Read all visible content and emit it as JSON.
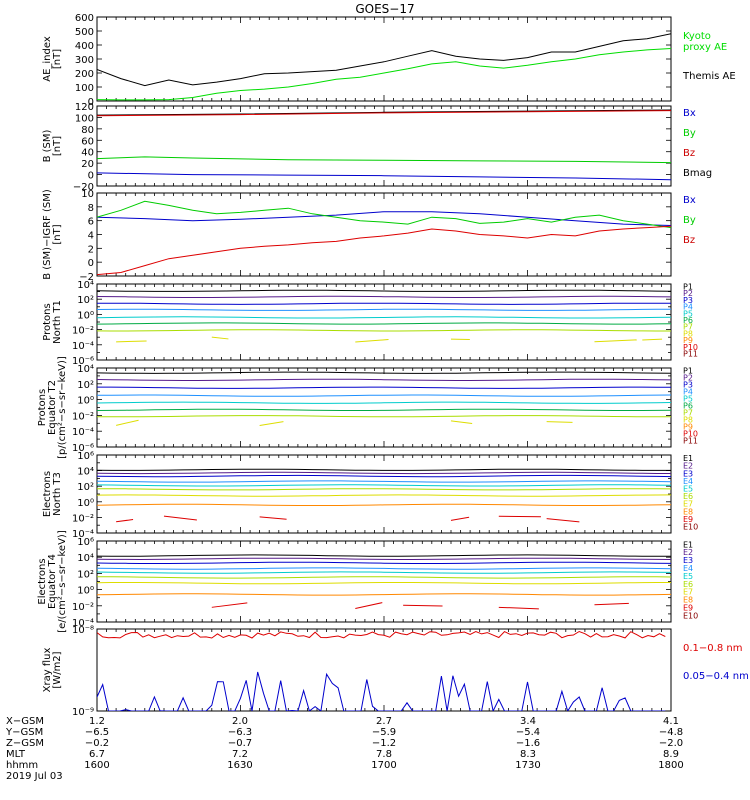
{
  "title": "GOES−17",
  "chart_data": [
    {
      "type": "line",
      "ylabel": [
        "AE_index",
        "[nT]"
      ],
      "ylim": [
        0,
        600
      ],
      "yticks": [
        "0",
        "100",
        "200",
        "300",
        "400",
        "500",
        "600"
      ],
      "legend": [
        {
          "text": [
            "Kyoto",
            "proxy AE"
          ],
          "color": "#00dd00"
        },
        {
          "text": [
            "Themis AE"
          ],
          "color": "#000000"
        }
      ],
      "series": [
        {
          "name": "Themis AE",
          "color": "#000000",
          "x": [
            0,
            5,
            10,
            15,
            20,
            25,
            30,
            35,
            40,
            45,
            50,
            55,
            60,
            65,
            70,
            75,
            80,
            85,
            90,
            95,
            100,
            105,
            110,
            115,
            120
          ],
          "y": [
            225,
            160,
            110,
            150,
            115,
            135,
            160,
            195,
            200,
            210,
            220,
            250,
            280,
            320,
            360,
            320,
            300,
            290,
            310,
            350,
            350,
            390,
            430,
            445,
            480
          ]
        },
        {
          "name": "Kyoto proxy AE",
          "color": "#00dd00",
          "x": [
            0,
            5,
            10,
            15,
            20,
            25,
            30,
            35,
            40,
            45,
            50,
            55,
            60,
            65,
            70,
            75,
            80,
            85,
            90,
            95,
            100,
            105,
            110,
            115,
            120
          ],
          "y": [
            10,
            8,
            8,
            10,
            25,
            55,
            75,
            85,
            100,
            125,
            155,
            170,
            200,
            230,
            265,
            280,
            250,
            235,
            255,
            280,
            300,
            330,
            350,
            365,
            375
          ]
        }
      ]
    },
    {
      "type": "line",
      "ylabel": [
        "B (SM)",
        "[nT]"
      ],
      "ylim": [
        -20,
        120
      ],
      "yticks": [
        "−20",
        "0",
        "20",
        "40",
        "60",
        "80",
        "100",
        "120"
      ],
      "legend": [
        {
          "text": [
            "Bx"
          ],
          "color": "#0000cc"
        },
        {
          "text": [
            "By"
          ],
          "color": "#00cc00"
        },
        {
          "text": [
            "Bz"
          ],
          "color": "#cc0000"
        },
        {
          "text": [
            "Bmag"
          ],
          "color": "#000000"
        }
      ],
      "series": [
        {
          "name": "Bmag",
          "color": "#000000",
          "x": [
            0,
            30,
            60,
            90,
            120
          ],
          "y": [
            104,
            106,
            109,
            111,
            113
          ]
        },
        {
          "name": "Bz",
          "color": "#dd0000",
          "x": [
            0,
            30,
            60,
            90,
            120
          ],
          "y": [
            103,
            105,
            108,
            110,
            112
          ]
        },
        {
          "name": "By",
          "color": "#00cc00",
          "x": [
            0,
            10,
            20,
            40,
            60,
            80,
            100,
            120
          ],
          "y": [
            28,
            31,
            29,
            26,
            25,
            24,
            23,
            21
          ]
        },
        {
          "name": "Bx",
          "color": "#0000cc",
          "x": [
            0,
            20,
            40,
            60,
            80,
            100,
            120
          ],
          "y": [
            3,
            0,
            -1,
            -2,
            -4,
            -6,
            -9
          ]
        }
      ]
    },
    {
      "type": "line",
      "ylabel": [
        "B (SM)−IGRF (SM)",
        "[nT]"
      ],
      "ylim": [
        -2,
        10
      ],
      "yticks": [
        "−2",
        "0",
        "2",
        "4",
        "6",
        "8",
        "10"
      ],
      "legend": [
        {
          "text": [
            "Bx"
          ],
          "color": "#0000cc"
        },
        {
          "text": [
            "By"
          ],
          "color": "#00cc00"
        },
        {
          "text": [
            "Bz"
          ],
          "color": "#cc0000"
        }
      ],
      "series": [
        {
          "name": "Bx",
          "color": "#0000cc",
          "x": [
            0,
            10,
            20,
            30,
            40,
            50,
            60,
            70,
            80,
            90,
            100,
            110,
            120
          ],
          "y": [
            6.5,
            6.3,
            6,
            6.2,
            6.5,
            6.8,
            7.3,
            7.3,
            7,
            6.5,
            6,
            5.5,
            5.3
          ]
        },
        {
          "name": "By",
          "color": "#00cc00",
          "x": [
            0,
            5,
            10,
            15,
            20,
            25,
            30,
            35,
            40,
            45,
            50,
            55,
            60,
            65,
            70,
            75,
            80,
            85,
            90,
            95,
            100,
            105,
            110,
            115,
            120
          ],
          "y": [
            6.5,
            7.5,
            8.8,
            8.2,
            7.5,
            7,
            7.2,
            7.5,
            7.8,
            7,
            6.5,
            6,
            5.8,
            5.5,
            6.5,
            6.3,
            5.6,
            5.8,
            6.3,
            5.8,
            6.5,
            6.8,
            6,
            5.5,
            5
          ]
        },
        {
          "name": "Bz",
          "color": "#dd0000",
          "x": [
            0,
            5,
            10,
            15,
            20,
            25,
            30,
            35,
            40,
            45,
            50,
            55,
            60,
            65,
            70,
            75,
            80,
            85,
            90,
            95,
            100,
            105,
            110,
            115,
            120
          ],
          "y": [
            -1.8,
            -1.5,
            -0.5,
            0.5,
            1,
            1.5,
            2,
            2.3,
            2.5,
            2.8,
            3,
            3.5,
            3.8,
            4.2,
            4.8,
            4.5,
            4,
            3.8,
            3.5,
            4,
            3.8,
            4.5,
            4.8,
            5,
            5.2
          ]
        }
      ]
    },
    {
      "type": "line",
      "log": true,
      "ylabel": [
        "Protons",
        "North T1"
      ],
      "ylim": [
        1e-06,
        10000.0
      ],
      "legend": [
        {
          "text": [
            "P1"
          ],
          "color": "#000000"
        },
        {
          "text": [
            "P2"
          ],
          "color": "#551a8b"
        },
        {
          "text": [
            "P3"
          ],
          "color": "#0000cc"
        },
        {
          "text": [
            "P4"
          ],
          "color": "#1e90ff"
        },
        {
          "text": [
            "P5"
          ],
          "color": "#00cccc"
        },
        {
          "text": [
            "P6"
          ],
          "color": "#00aa44"
        },
        {
          "text": [
            "P7"
          ],
          "color": "#aadd00"
        },
        {
          "text": [
            "P8"
          ],
          "color": "#dddd00"
        },
        {
          "text": [
            "P9"
          ],
          "color": "#ff8800"
        },
        {
          "text": [
            "P10"
          ],
          "color": "#dd0000"
        },
        {
          "text": [
            "P11"
          ],
          "color": "#880000"
        }
      ],
      "series": [
        {
          "name": "P1",
          "color": "#000000",
          "logval": 3.1
        },
        {
          "name": "P2",
          "color": "#551a8b",
          "logval": 2.3
        },
        {
          "name": "P3",
          "color": "#0000cc",
          "logval": 1.4
        },
        {
          "name": "P4",
          "color": "#1e90ff",
          "logval": 0.6
        },
        {
          "name": "P5",
          "color": "#00cccc",
          "logval": -0.4
        },
        {
          "name": "P6",
          "color": "#00aa44",
          "logval": -1.2
        },
        {
          "name": "P7",
          "color": "#aadd00",
          "logval": -2.1
        },
        {
          "name": "P8",
          "color": "#dddd00",
          "logval": -3.3,
          "fragments": true
        }
      ]
    },
    {
      "type": "line",
      "log": true,
      "ylabel": [
        "Protons",
        "Equator T2",
        "[p/(cm²−s−sr−keV)]"
      ],
      "ylim": [
        1e-06,
        10000.0
      ],
      "legend": [
        {
          "text": [
            "P1"
          ],
          "color": "#000000"
        },
        {
          "text": [
            "P2"
          ],
          "color": "#551a8b"
        },
        {
          "text": [
            "P3"
          ],
          "color": "#0000cc"
        },
        {
          "text": [
            "P4"
          ],
          "color": "#1e90ff"
        },
        {
          "text": [
            "P5"
          ],
          "color": "#00cccc"
        },
        {
          "text": [
            "P6"
          ],
          "color": "#00aa44"
        },
        {
          "text": [
            "P7"
          ],
          "color": "#aadd00"
        },
        {
          "text": [
            "P8"
          ],
          "color": "#dddd00"
        },
        {
          "text": [
            "P9"
          ],
          "color": "#ff8800"
        },
        {
          "text": [
            "P10"
          ],
          "color": "#dd0000"
        },
        {
          "text": [
            "P11"
          ],
          "color": "#880000"
        }
      ],
      "series": [
        {
          "name": "P1",
          "color": "#000000",
          "logval": 3.4
        },
        {
          "name": "P2",
          "color": "#551a8b",
          "logval": 2.5
        },
        {
          "name": "P3",
          "color": "#0000cc",
          "logval": 1.5
        },
        {
          "name": "P4",
          "color": "#1e90ff",
          "logval": 0.5
        },
        {
          "name": "P5",
          "color": "#00cccc",
          "logval": -0.4
        },
        {
          "name": "P6",
          "color": "#00aa44",
          "logval": -1.3
        },
        {
          "name": "P7",
          "color": "#aadd00",
          "logval": -2.1
        },
        {
          "name": "P8",
          "color": "#dddd00",
          "logval": -3.0,
          "fragments": true
        }
      ]
    },
    {
      "type": "line",
      "log": true,
      "ylabel": [
        "Electrons",
        "North T3"
      ],
      "ylim": [
        0.0001,
        1000000.0
      ],
      "legend": [
        {
          "text": [
            "E1"
          ],
          "color": "#000000"
        },
        {
          "text": [
            "E2"
          ],
          "color": "#551a8b"
        },
        {
          "text": [
            "E3"
          ],
          "color": "#0000cc"
        },
        {
          "text": [
            "E4"
          ],
          "color": "#1e90ff"
        },
        {
          "text": [
            "E5"
          ],
          "color": "#00cccc"
        },
        {
          "text": [
            "E6"
          ],
          "color": "#aadd00"
        },
        {
          "text": [
            "E7"
          ],
          "color": "#dddd00"
        },
        {
          "text": [
            "E8"
          ],
          "color": "#ff8800"
        },
        {
          "text": [
            "E9"
          ],
          "color": "#dd0000"
        },
        {
          "text": [
            "E10"
          ],
          "color": "#880000"
        }
      ],
      "series": [
        {
          "name": "E1",
          "color": "#000000",
          "logval": 4.1
        },
        {
          "name": "E2",
          "color": "#551a8b",
          "logval": 3.7
        },
        {
          "name": "E3",
          "color": "#0000cc",
          "logval": 3.3
        },
        {
          "name": "E4",
          "color": "#1e90ff",
          "logval": 2.6
        },
        {
          "name": "E5",
          "color": "#00cccc",
          "logval": 2.1
        },
        {
          "name": "E6",
          "color": "#aadd00",
          "logval": 1.6
        },
        {
          "name": "E7",
          "color": "#dddd00",
          "logval": 0.8
        },
        {
          "name": "E8",
          "color": "#ff8800",
          "logval": -0.4
        },
        {
          "name": "E9",
          "color": "#dd0000",
          "logval": -2.2,
          "fragments": true
        }
      ]
    },
    {
      "type": "line",
      "log": true,
      "ylabel": [
        "Electrons",
        "Equator T4",
        "[e/(cm²−s−sr−keV)]"
      ],
      "ylim": [
        0.0001,
        1000000.0
      ],
      "legend": [
        {
          "text": [
            "E1"
          ],
          "color": "#000000"
        },
        {
          "text": [
            "E2"
          ],
          "color": "#551a8b"
        },
        {
          "text": [
            "E3"
          ],
          "color": "#0000cc"
        },
        {
          "text": [
            "E4"
          ],
          "color": "#1e90ff"
        },
        {
          "text": [
            "E5"
          ],
          "color": "#00cccc"
        },
        {
          "text": [
            "E6"
          ],
          "color": "#aadd00"
        },
        {
          "text": [
            "E7"
          ],
          "color": "#dddd00"
        },
        {
          "text": [
            "E8"
          ],
          "color": "#ff8800"
        },
        {
          "text": [
            "E9"
          ],
          "color": "#dd0000"
        },
        {
          "text": [
            "E10"
          ],
          "color": "#880000"
        }
      ],
      "series": [
        {
          "name": "E1",
          "color": "#000000",
          "logval": 4.2
        },
        {
          "name": "E2",
          "color": "#551a8b",
          "logval": 3.8
        },
        {
          "name": "E3",
          "color": "#0000cc",
          "logval": 3.3
        },
        {
          "name": "E4",
          "color": "#1e90ff",
          "logval": 2.6
        },
        {
          "name": "E5",
          "color": "#00cccc",
          "logval": 2.1
        },
        {
          "name": "E6",
          "color": "#aadd00",
          "logval": 1.5
        },
        {
          "name": "E7",
          "color": "#dddd00",
          "logval": 0.8
        },
        {
          "name": "E8",
          "color": "#ff8800",
          "logval": -0.6
        },
        {
          "name": "E9",
          "color": "#dd0000",
          "logval": -2.0,
          "fragments": true
        }
      ]
    },
    {
      "type": "line",
      "log": true,
      "ylabel": [
        "Xray flux",
        "[W/m2]"
      ],
      "ylim": [
        1e-09,
        1e-08
      ],
      "legend": [
        {
          "text": [
            "0.1−0.8 nm"
          ],
          "color": "#dd0000"
        },
        {
          "text": [
            "0.05−0.4 nm"
          ],
          "color": "#0000cc"
        }
      ],
      "series": [
        {
          "name": "0.1−0.8 nm",
          "color": "#dd0000",
          "logval": -8.07,
          "noisy": true
        },
        {
          "name": "0.05−0.4 nm",
          "color": "#0000cc",
          "spiky": true
        }
      ]
    }
  ],
  "xaxis": {
    "rows": [
      {
        "label": "X−GSM",
        "values": [
          "1.2",
          "2.0",
          "2.7",
          "3.4",
          "4.1"
        ]
      },
      {
        "label": "Y−GSM",
        "values": [
          "−6.5",
          "−6.3",
          "−5.9",
          "−5.4",
          "−4.8"
        ]
      },
      {
        "label": "Z−GSM",
        "values": [
          "−0.2",
          "−0.7",
          "−1.2",
          "−1.6",
          "−2.0"
        ]
      },
      {
        "label": "MLT",
        "values": [
          "6.7",
          "7.2",
          "7.8",
          "8.3",
          "8.9"
        ]
      },
      {
        "label": "hhmm",
        "values": [
          "1600",
          "1630",
          "1700",
          "1730",
          "1800"
        ]
      }
    ],
    "date": "2019 Jul 03"
  }
}
